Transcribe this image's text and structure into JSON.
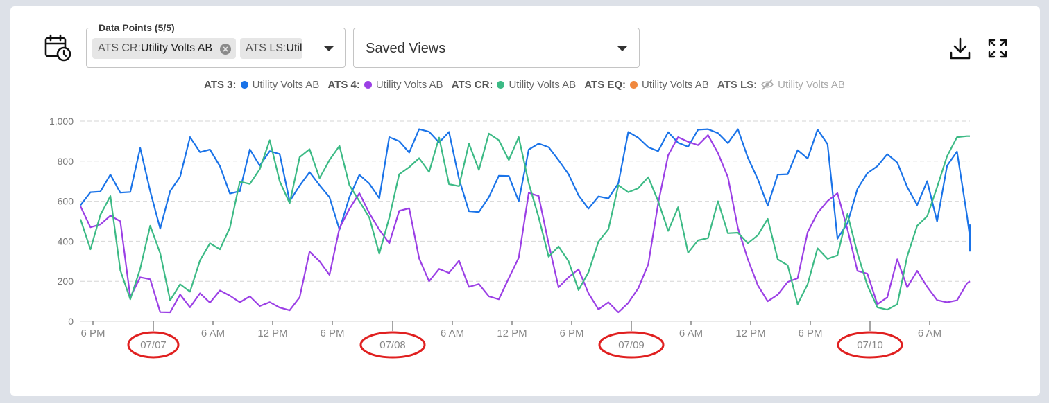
{
  "toolbar": {
    "data_points_label": "Data Points (5/5)",
    "chips": [
      {
        "system": "ATS CR:",
        "point": "Utility Volts AB"
      },
      {
        "system": "ATS LS:",
        "point": "Util"
      }
    ],
    "saved_views_label": "Saved Views"
  },
  "icons": {
    "calendar": "calendar-clock-icon",
    "download": "download-icon",
    "fullscreen": "fullscreen-icon"
  },
  "chart_data": {
    "type": "line",
    "x_start": "2024-07-06T18:00",
    "x_step_hours": 1,
    "x_tick_labels": [
      "6 PM",
      "07/07",
      "6 AM",
      "12 PM",
      "6 PM",
      "07/08",
      "6 AM",
      "12 PM",
      "6 PM",
      "07/09",
      "6 AM",
      "12 PM",
      "6 PM",
      "07/10",
      "6 AM"
    ],
    "ylim": [
      0,
      1000
    ],
    "y_ticks": [
      0,
      200,
      400,
      600,
      800,
      1000
    ],
    "y_tick_labels": [
      "0",
      "200",
      "400",
      "600",
      "800",
      "1,000"
    ],
    "grid": true,
    "legend_position": "top",
    "annotations": "red ellipses around date tick labels",
    "series": [
      {
        "system": "ATS 3:",
        "name": "Utility Volts AB",
        "color": "#1a73e8",
        "visible": true,
        "values": [
          580,
          645,
          648,
          733,
          643,
          646,
          866,
          650,
          463,
          650,
          722,
          920,
          845,
          858,
          775,
          638,
          650,
          859,
          778,
          850,
          836,
          600,
          678,
          745,
          680,
          620,
          458,
          620,
          732,
          688,
          615,
          920,
          900,
          843,
          960,
          947,
          893,
          946,
          712,
          550,
          546,
          620,
          727,
          726,
          600,
          858,
          888,
          870,
          805,
          735,
          629,
          563,
          624,
          614,
          690,
          946,
          917,
          870,
          850,
          945,
          892,
          872,
          957,
          960,
          940,
          890,
          960,
          818,
          710,
          578,
          733,
          735,
          855,
          813,
          958,
          885,
          413,
          490,
          662,
          740,
          775,
          835,
          793,
          671,
          581,
          700,
          499,
          777,
          848,
          528,
          420,
          352,
          456,
          484
        ]
      },
      {
        "system": "ATS 4:",
        "name": "Utility Volts AB",
        "color": "#9b3fe5",
        "visible": true,
        "values": [
          575,
          470,
          484,
          528,
          500,
          120,
          220,
          210,
          46,
          45,
          134,
          70,
          140,
          93,
          154,
          128,
          95,
          125,
          76,
          96,
          69,
          55,
          120,
          348,
          300,
          232,
          465,
          562,
          640,
          540,
          458,
          390,
          552,
          565,
          315,
          200,
          262,
          242,
          303,
          172,
          186,
          125,
          110,
          216,
          318,
          642,
          626,
          388,
          170,
          220,
          260,
          140,
          60,
          95,
          45,
          92,
          165,
          285,
          590,
          830,
          920,
          897,
          880,
          930,
          840,
          720,
          466,
          310,
          180,
          100,
          133,
          197,
          215,
          445,
          542,
          601,
          640,
          460,
          252,
          238,
          85,
          120,
          310,
          170,
          252,
          172,
          106,
          95,
          105,
          190,
          200
        ]
      },
      {
        "system": "ATS CR:",
        "name": "Utility Volts AB",
        "color": "#3cba85",
        "visible": true,
        "values": [
          510,
          360,
          532,
          626,
          255,
          110,
          263,
          478,
          340,
          105,
          185,
          148,
          305,
          390,
          360,
          468,
          698,
          686,
          760,
          905,
          700,
          590,
          820,
          860,
          715,
          806,
          876,
          680,
          600,
          518,
          338,
          518,
          735,
          770,
          815,
          746,
          918,
          685,
          675,
          888,
          756,
          938,
          905,
          806,
          920,
          690,
          520,
          323,
          374,
          300,
          156,
          245,
          398,
          460,
          680,
          645,
          665,
          720,
          600,
          452,
          570,
          343,
          405,
          416,
          600,
          440,
          443,
          390,
          430,
          512,
          310,
          280,
          85,
          185,
          365,
          312,
          330,
          536,
          340,
          180,
          70,
          58,
          85,
          325,
          478,
          525,
          670,
          825,
          920,
          925,
          925
        ]
      },
      {
        "system": "ATS EQ:",
        "name": "Utility Volts AB",
        "color": "#f0883e",
        "visible": true,
        "values": []
      },
      {
        "system": "ATS LS:",
        "name": "Utility Volts AB",
        "color": "#aaaaaa",
        "visible": false,
        "values": []
      }
    ]
  }
}
